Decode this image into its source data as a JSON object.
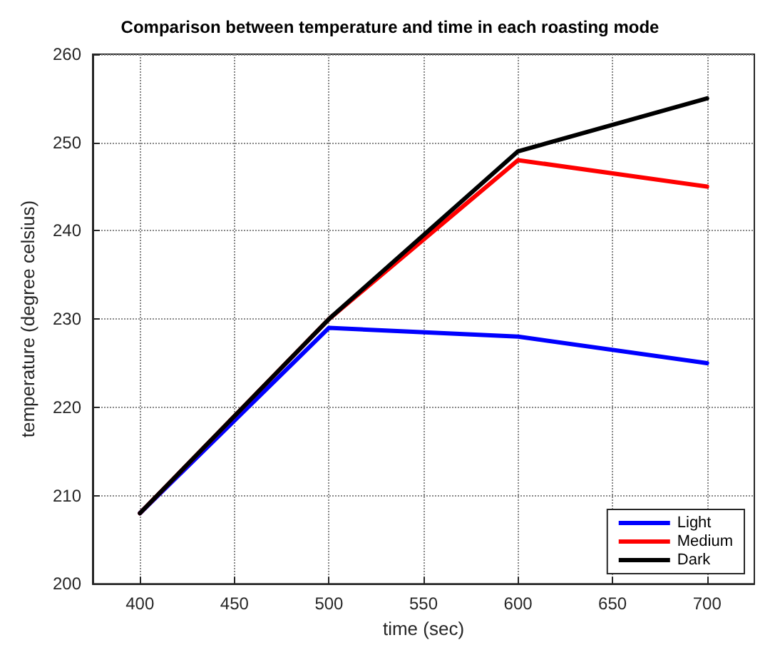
{
  "chart_data": {
    "type": "line",
    "title": "Comparison between temperature and time in each roasting mode",
    "xlabel": "time (sec)",
    "ylabel": "temperature (degree celsius)",
    "x": [
      400,
      500,
      600,
      700
    ],
    "series": [
      {
        "name": "Light",
        "color": "#0000ff",
        "values": [
          208,
          229,
          228,
          225
        ]
      },
      {
        "name": "Medium",
        "color": "#ff0000",
        "values": [
          208,
          230,
          248,
          245
        ]
      },
      {
        "name": "Dark",
        "color": "#000000",
        "values": [
          208,
          230,
          249,
          255
        ]
      }
    ],
    "xlim": [
      375,
      725
    ],
    "xticks": [
      400,
      450,
      500,
      550,
      600,
      650,
      700
    ],
    "ylim": [
      200,
      260
    ],
    "yticks": [
      200,
      210,
      220,
      230,
      240,
      250,
      260
    ],
    "grid": true,
    "legend": "bottom right",
    "marker": "none",
    "line_style": "solid"
  }
}
